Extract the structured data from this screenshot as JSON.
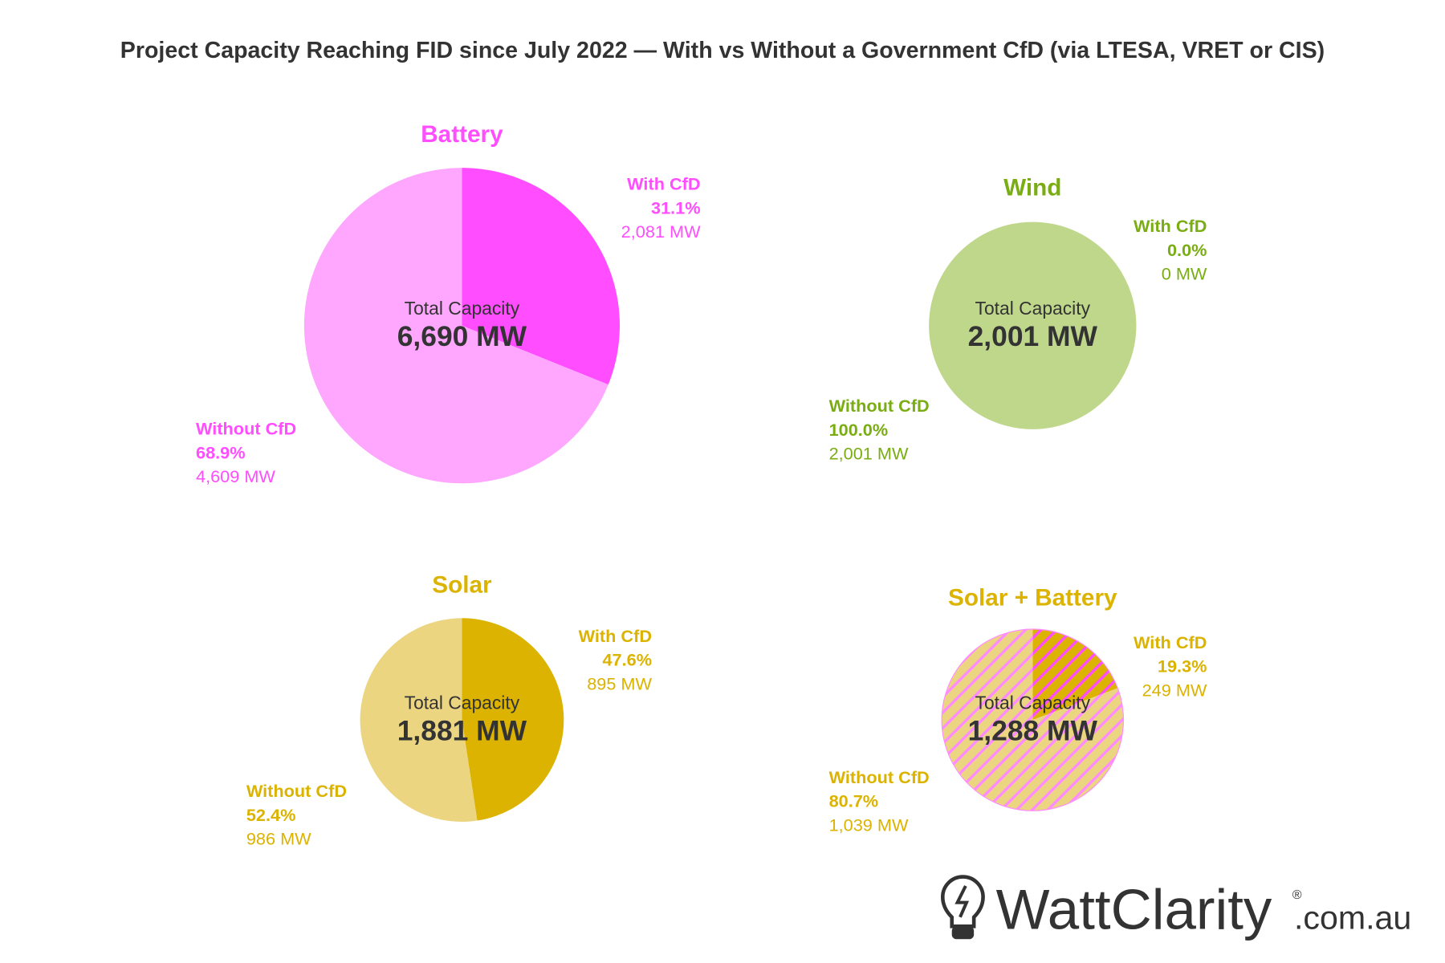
{
  "chart_data": [
    {
      "type": "pie",
      "title": "Battery",
      "center_label": "Total Capacity",
      "total": "6,690 MW",
      "colors": {
        "title": "#ff4dff",
        "with": "#ff4dff",
        "without": "#ffa6ff"
      },
      "slices": [
        {
          "name": "With CfD",
          "percent": 31.1,
          "pct_label": "31.1%",
          "value_label": "2,081 MW",
          "value": 2081
        },
        {
          "name": "Without CfD",
          "percent": 68.9,
          "pct_label": "68.9%",
          "value_label": "4,609 MW",
          "value": 4609
        }
      ]
    },
    {
      "type": "pie",
      "title": "Wind",
      "center_label": "Total Capacity",
      "total": "2,001 MW",
      "colors": {
        "title": "#7aad14",
        "with": "#7aad14",
        "without": "#bfd78b"
      },
      "slices": [
        {
          "name": "With CfD",
          "percent": 0.0,
          "pct_label": "0.0%",
          "value_label": "0 MW",
          "value": 0
        },
        {
          "name": "Without CfD",
          "percent": 100.0,
          "pct_label": "100.0%",
          "value_label": "2,001 MW",
          "value": 2001
        }
      ]
    },
    {
      "type": "pie",
      "title": "Solar",
      "center_label": "Total Capacity",
      "total": "1,881 MW",
      "colors": {
        "title": "#dbb300",
        "with": "#dbb300",
        "without": "#ebd580"
      },
      "slices": [
        {
          "name": "With CfD",
          "percent": 47.6,
          "pct_label": "47.6%",
          "value_label": "895 MW",
          "value": 895
        },
        {
          "name": "Without CfD",
          "percent": 52.4,
          "pct_label": "52.4%",
          "value_label": "986 MW",
          "value": 986
        }
      ]
    },
    {
      "type": "pie",
      "title": "Solar + Battery",
      "center_label": "Total Capacity",
      "total": "1,288 MW",
      "colors": {
        "title": "#dbb300",
        "with": "#dbb300",
        "without": "#ebd580",
        "hatch": "#ff8cff",
        "hatch_with": "#ff4dff"
      },
      "hatched": true,
      "slices": [
        {
          "name": "With CfD",
          "percent": 19.3,
          "pct_label": "19.3%",
          "value_label": "249 MW",
          "value": 249
        },
        {
          "name": "Without CfD",
          "percent": 80.7,
          "pct_label": "80.7%",
          "value_label": "1,039 MW",
          "value": 1039
        }
      ]
    }
  ],
  "title": "Project Capacity Reaching FID since July 2022 — With vs Without a Government CfD (via LTESA, VRET or CIS)",
  "logo": {
    "text": "WattClarity",
    "suffix": ".com.au",
    "mark": "®",
    "icon": "lightbulb-bolt-icon",
    "color": "#333333"
  }
}
